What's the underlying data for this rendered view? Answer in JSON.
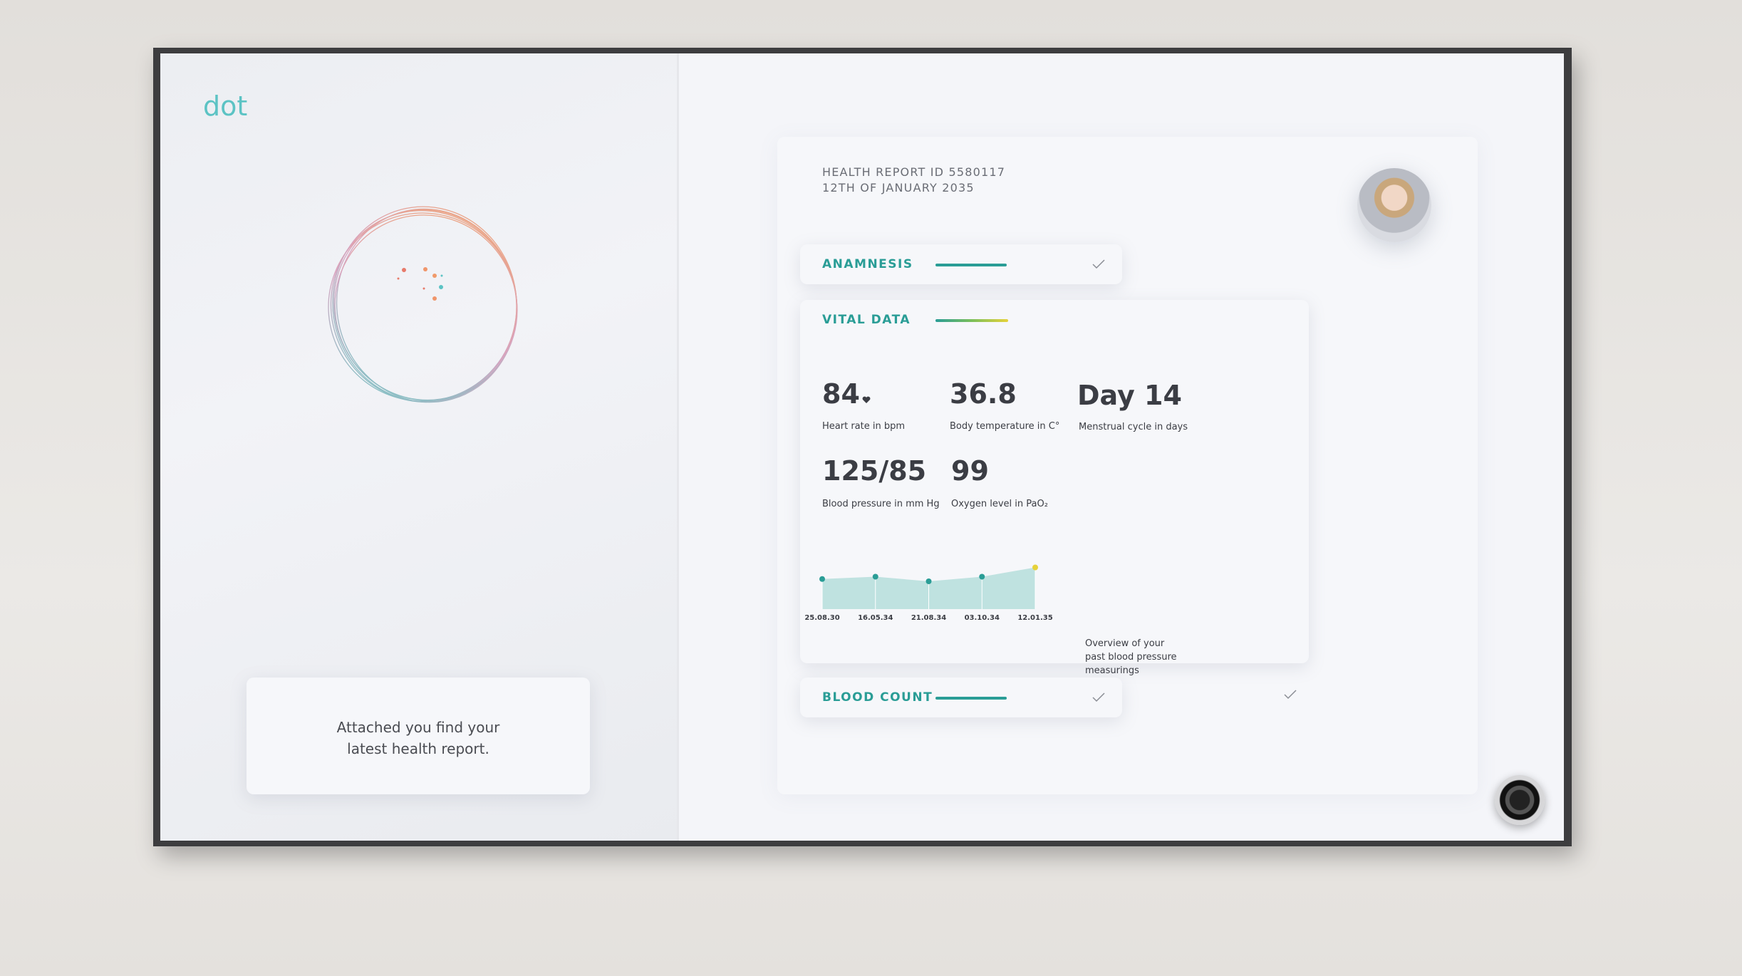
{
  "logo": "dot",
  "message": [
    "Attached you find your",
    "latest health report."
  ],
  "report": {
    "id_line": "HEALTH REPORT ID 5580117",
    "date_line": "12TH OF JANUARY 2035",
    "sections": [
      "ANAMNESIS",
      "VITAL DATA",
      "BLOOD COUNT"
    ],
    "vitals": [
      {
        "value": "84",
        "label": "Heart rate in bpm"
      },
      {
        "value": "36.8",
        "label": "Body temperature in C°"
      },
      {
        "value": "Day 14",
        "label": "Menstrual cycle in days"
      },
      {
        "value": "125/85",
        "label": "Blood pressure in mm Hg"
      },
      {
        "value": "99",
        "label": "Oxygen level in PaO₂"
      }
    ]
  },
  "chart_data": {
    "type": "area",
    "categories": [
      "25.08.30",
      "16.05.34",
      "21.08.34",
      "03.10.34",
      "12.01.35"
    ],
    "values": [
      0.65,
      0.7,
      0.6,
      0.7,
      0.9
    ],
    "ylim": [
      0,
      1
    ],
    "color": "#2a9d96",
    "fill": "#b5dedb",
    "highlight_color": "#e6d23a",
    "caption": [
      "Overview of your",
      "past blood pressure",
      "measurings"
    ]
  }
}
